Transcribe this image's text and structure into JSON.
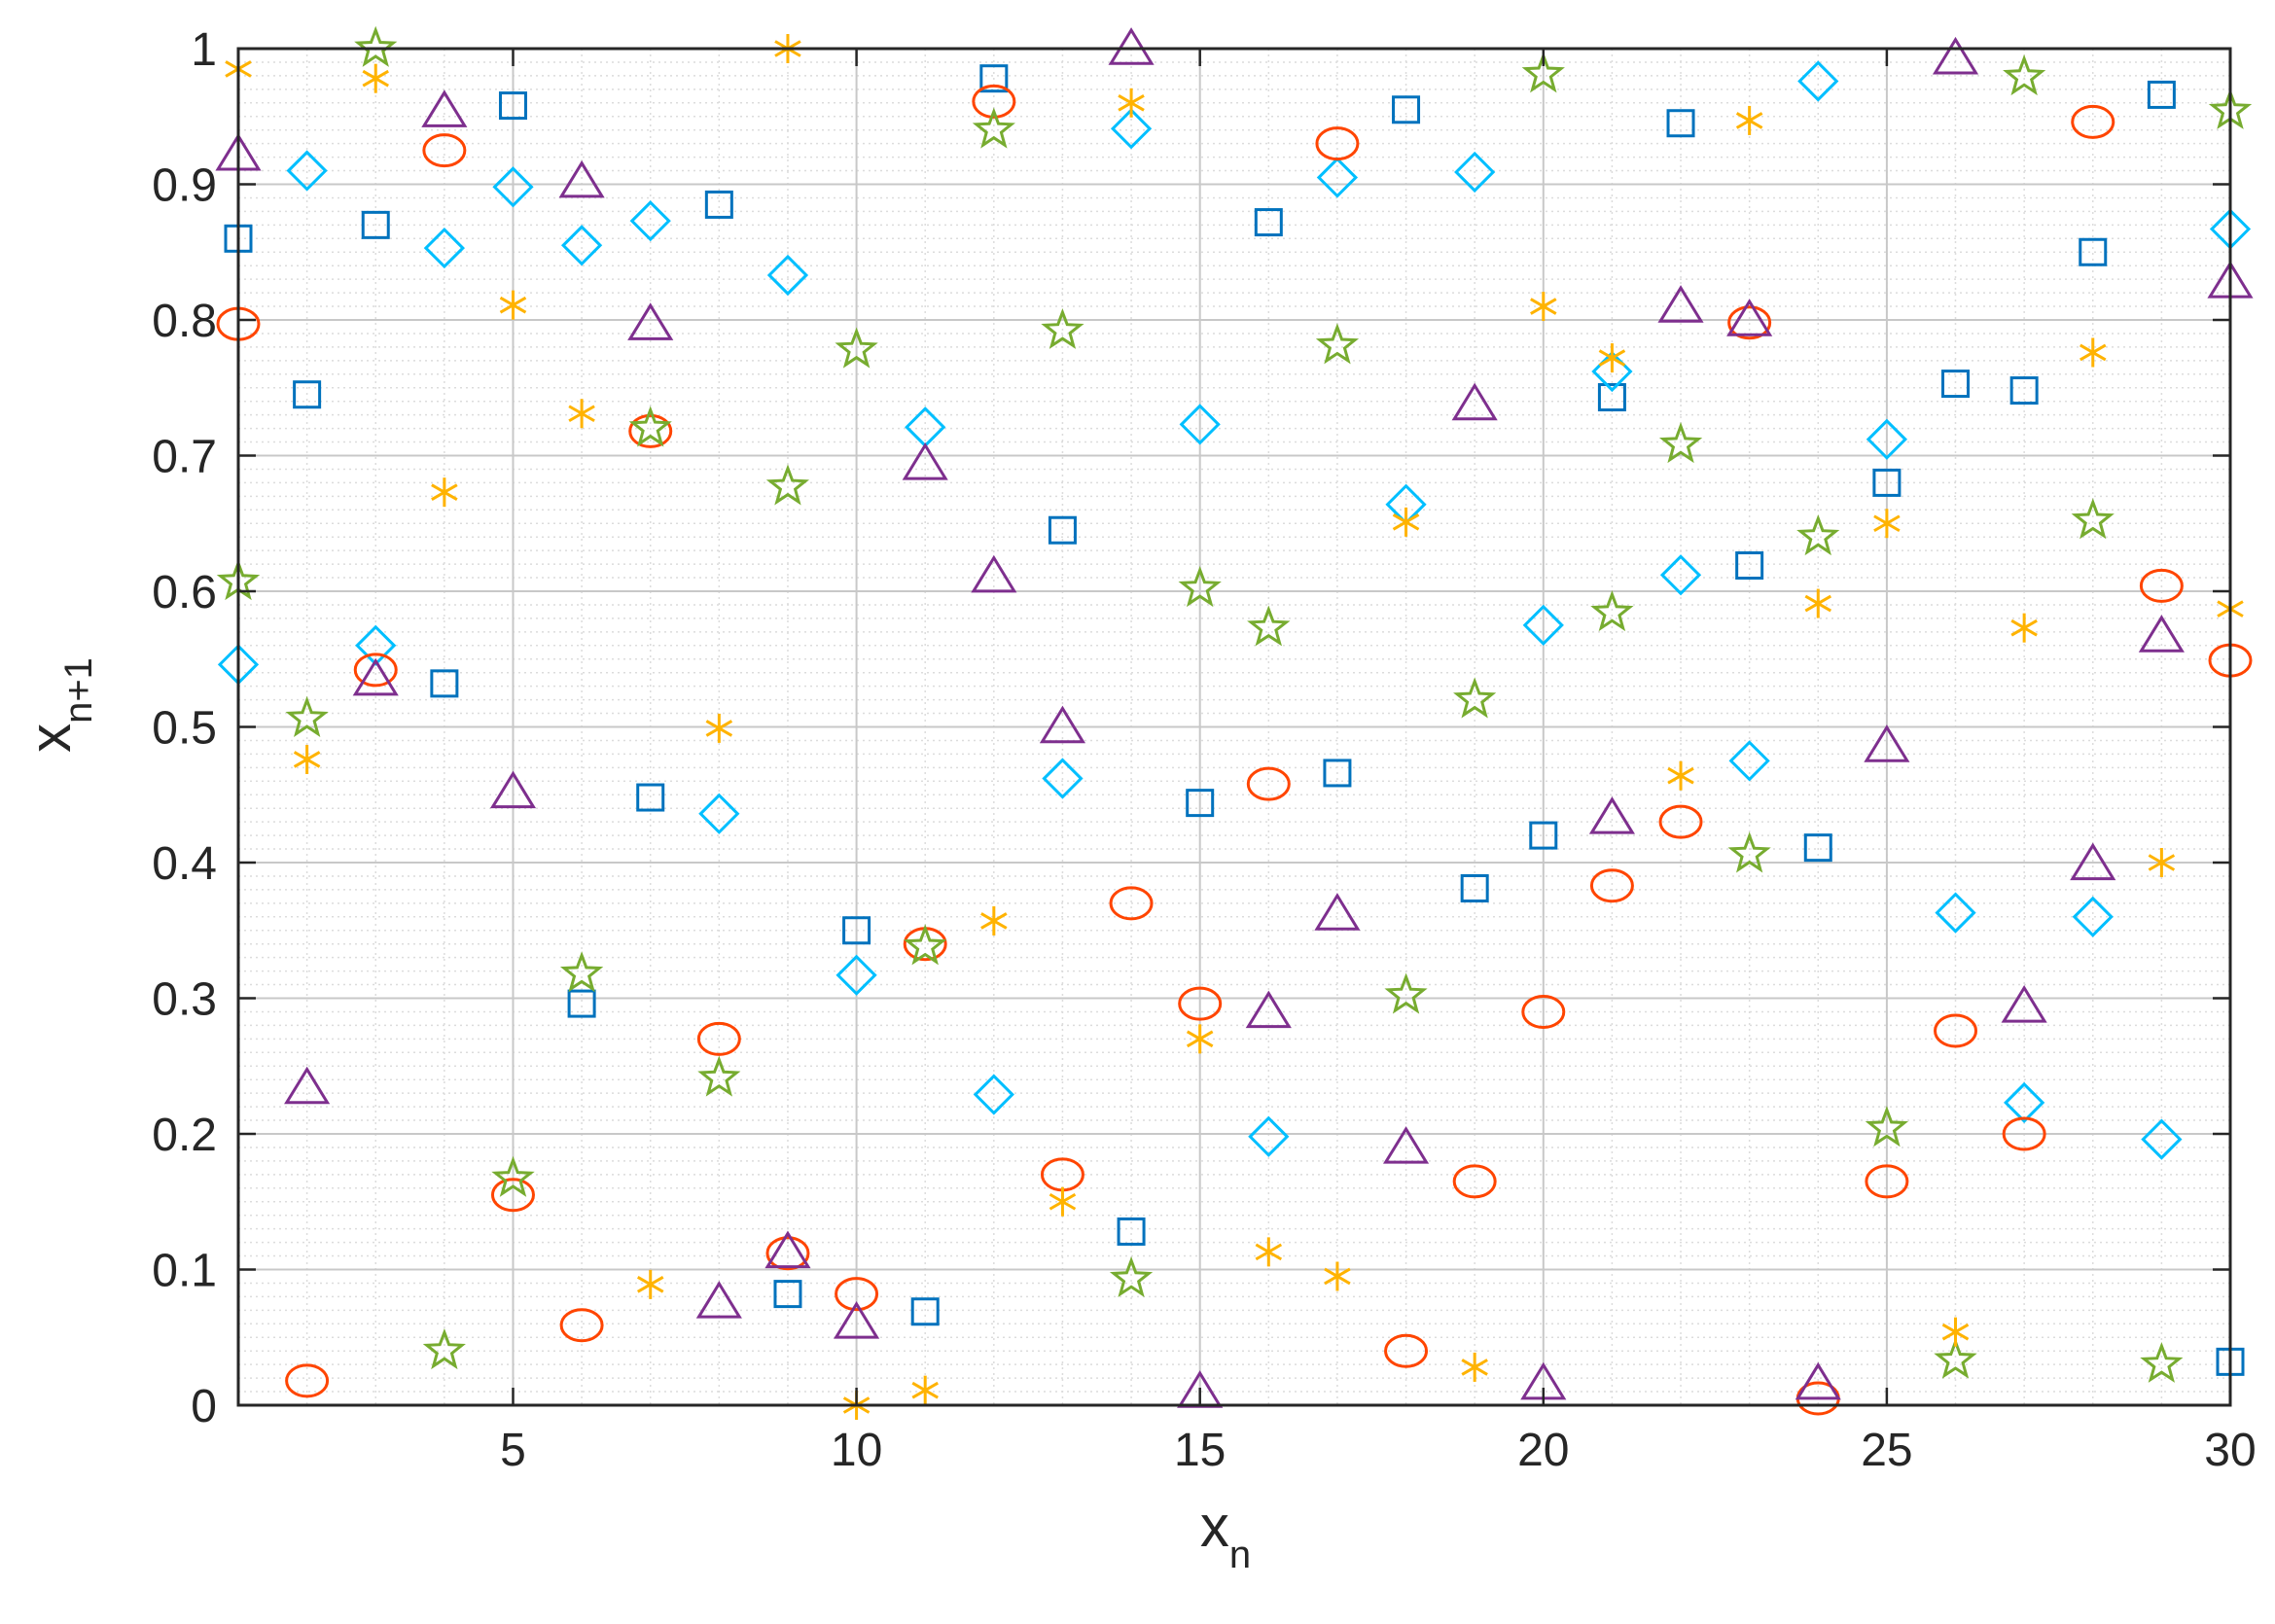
{
  "chart_data": {
    "type": "scatter",
    "xlabel": "x",
    "xlabel_sub": "n",
    "ylabel": "x",
    "ylabel_sub": "n+1",
    "xlim": [
      1,
      30
    ],
    "ylim": [
      0,
      1
    ],
    "x_ticks": [
      5,
      10,
      15,
      20,
      25,
      30
    ],
    "x_tick_labels": [
      "5",
      "10",
      "15",
      "20",
      "25",
      "30"
    ],
    "y_ticks": [
      0,
      0.1,
      0.2,
      0.3,
      0.4,
      0.5,
      0.6,
      0.7,
      0.8,
      0.9,
      1
    ],
    "y_tick_labels": [
      "0",
      "0.1",
      "0.2",
      "0.3",
      "0.4",
      "0.5",
      "0.6",
      "0.7",
      "0.8",
      "0.9",
      "1"
    ],
    "grid": true,
    "minor_grid": true,
    "legend": "none",
    "series": [
      {
        "marker": "square",
        "color": "#0072BD",
        "x": [
          1,
          2,
          3,
          4,
          5,
          6,
          7,
          8,
          9,
          10,
          11,
          12,
          13,
          14,
          15,
          16,
          17,
          18,
          19,
          20,
          21,
          22,
          23,
          24,
          25,
          26,
          27,
          28,
          29,
          30
        ],
        "y": [
          0.86,
          0.745,
          0.87,
          0.532,
          0.958,
          0.296,
          0.448,
          0.885,
          0.082,
          0.35,
          0.069,
          0.978,
          0.645,
          0.128,
          0.444,
          0.872,
          0.466,
          0.955,
          0.381,
          0.42,
          0.743,
          0.945,
          0.619,
          0.411,
          0.68,
          0.753,
          0.748,
          0.85,
          0.966,
          0.032
        ]
      },
      {
        "marker": "diamond",
        "color": "#00BFFF",
        "x": [
          1,
          2,
          3,
          4,
          5,
          6,
          7,
          8,
          9,
          10,
          11,
          12,
          13,
          14,
          15,
          16,
          17,
          18,
          19,
          20,
          21,
          22,
          23,
          24,
          25,
          26,
          27,
          28,
          29,
          30
        ],
        "y": [
          0.546,
          0.91,
          0.56,
          0.853,
          0.898,
          0.855,
          0.873,
          0.436,
          0.833,
          0.317,
          0.721,
          0.229,
          0.462,
          0.941,
          0.723,
          0.198,
          0.905,
          0.664,
          0.909,
          0.575,
          0.762,
          0.612,
          0.475,
          0.976,
          0.712,
          0.363,
          0.223,
          0.36,
          0.196,
          0.867
        ]
      },
      {
        "marker": "circle",
        "color": "#FF4500",
        "x": [
          1,
          2,
          3,
          4,
          5,
          6,
          7,
          8,
          9,
          10,
          11,
          12,
          13,
          14,
          15,
          16,
          17,
          18,
          19,
          20,
          21,
          22,
          23,
          24,
          25,
          26,
          27,
          28,
          29,
          30
        ],
        "y": [
          0.797,
          0.018,
          0.542,
          0.925,
          0.155,
          0.059,
          0.718,
          0.27,
          0.112,
          0.082,
          0.34,
          0.961,
          0.17,
          0.37,
          0.296,
          0.458,
          0.93,
          0.04,
          0.165,
          0.29,
          0.383,
          0.43,
          0.798,
          0.005,
          0.165,
          0.276,
          0.2,
          0.946,
          0.604,
          0.549
        ]
      },
      {
        "marker": "triangle",
        "color": "#7E2F8E",
        "x": [
          1,
          2,
          3,
          4,
          5,
          6,
          7,
          8,
          9,
          10,
          11,
          12,
          13,
          14,
          15,
          16,
          17,
          18,
          19,
          20,
          21,
          22,
          23,
          24,
          25,
          26,
          27,
          28,
          29,
          30
        ],
        "y": [
          0.922,
          0.234,
          0.535,
          0.954,
          0.452,
          0.902,
          0.797,
          0.076,
          0.113,
          0.061,
          0.694,
          0.611,
          0.5,
          1.0,
          0.01,
          0.29,
          0.362,
          0.19,
          0.738,
          0.016,
          0.433,
          0.81,
          0.8,
          0.016,
          0.486,
          0.993,
          0.294,
          0.399,
          0.567,
          0.828
        ]
      },
      {
        "marker": "star",
        "color": "#77AC30",
        "x": [
          1,
          2,
          3,
          4,
          5,
          6,
          7,
          8,
          9,
          10,
          11,
          12,
          13,
          14,
          15,
          16,
          17,
          18,
          19,
          20,
          21,
          22,
          23,
          24,
          25,
          26,
          27,
          28,
          29,
          30
        ],
        "y": [
          0.607,
          0.506,
          1.0,
          0.04,
          0.167,
          0.318,
          0.72,
          0.241,
          0.677,
          0.778,
          0.338,
          0.94,
          0.792,
          0.093,
          0.602,
          0.573,
          0.781,
          0.302,
          0.52,
          0.981,
          0.584,
          0.708,
          0.406,
          0.64,
          0.204,
          0.033,
          0.979,
          0.652,
          0.03,
          0.954
        ]
      },
      {
        "marker": "asterisk",
        "color": "#FFB300",
        "x": [
          1,
          2,
          3,
          4,
          5,
          6,
          7,
          8,
          9,
          10,
          11,
          12,
          13,
          14,
          15,
          16,
          17,
          18,
          19,
          20,
          21,
          22,
          23,
          24,
          25,
          26,
          27,
          28,
          29,
          30
        ],
        "y": [
          0.985,
          0.476,
          0.978,
          0.673,
          0.811,
          0.731,
          0.089,
          0.499,
          1.0,
          0.0,
          0.011,
          0.357,
          0.15,
          0.96,
          0.27,
          0.113,
          0.095,
          0.651,
          0.028,
          0.81,
          0.772,
          0.464,
          0.947,
          0.591,
          0.65,
          0.054,
          0.573,
          0.776,
          0.4,
          0.587
        ]
      }
    ]
  }
}
